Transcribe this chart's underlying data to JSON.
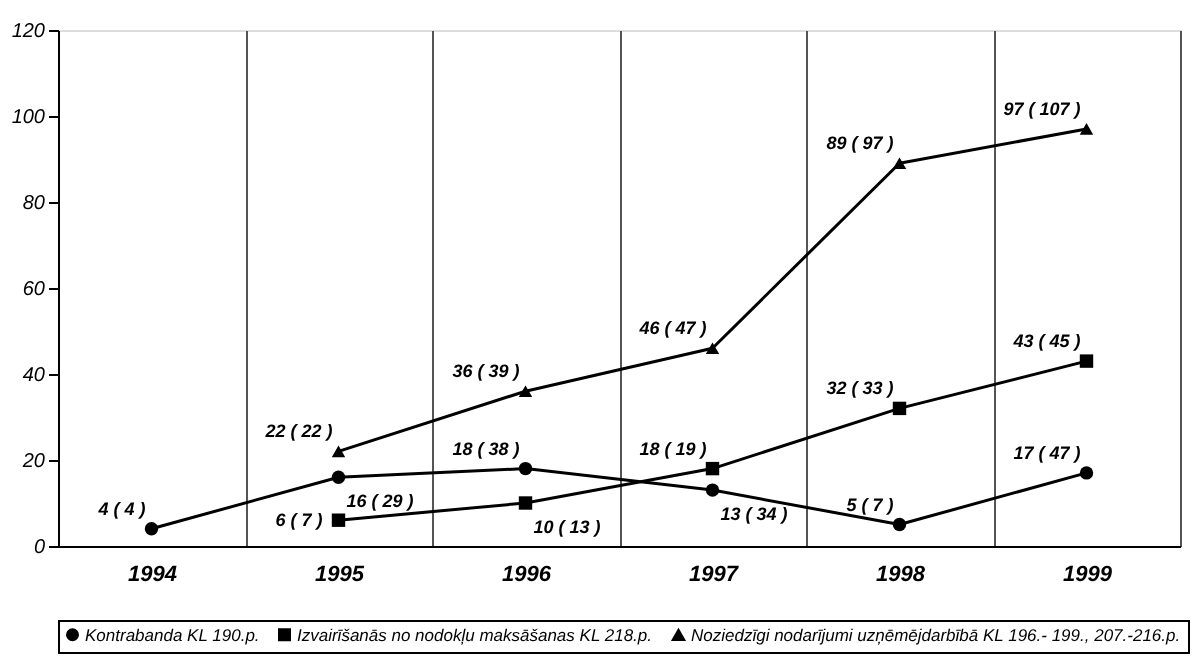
{
  "chart_data": {
    "type": "line",
    "categories": [
      "1994",
      "1995",
      "1996",
      "1997",
      "1998",
      "1999"
    ],
    "series": [
      {
        "name": "Kontrabanda KL 190.p.",
        "color": "#000000",
        "marker": "circle",
        "values": [
          4,
          16,
          18,
          13,
          5,
          17
        ],
        "value_labels": [
          "4 ( 4 )",
          "16 ( 29 )",
          "18 ( 38 )",
          "13 ( 34 )",
          "5 ( 7 )",
          "17 ( 47 )"
        ]
      },
      {
        "name": "Izvairīšanās no nodokļu maksāšanas KL 218.p.",
        "color": "#000000",
        "marker": "square",
        "values": [
          null,
          6,
          10,
          18,
          32,
          43
        ],
        "value_labels": [
          null,
          "6 ( 7 )",
          "10 ( 13 )",
          "18 ( 19 )",
          "32 ( 33 )",
          "43 ( 45 )"
        ]
      },
      {
        "name": "Noziedzīgi nodarījumi uzņēmējdarbībā KL 196.- 199., 207.-216.p.",
        "color": "#000000",
        "marker": "triangle",
        "values": [
          null,
          22,
          36,
          46,
          89,
          97
        ],
        "value_labels": [
          null,
          "22 ( 22 )",
          "36 ( 39 )",
          "46 ( 47 )",
          "89 ( 97 )",
          "97 ( 107 )"
        ]
      }
    ],
    "ylim": [
      0,
      120
    ],
    "yticks": [
      0,
      20,
      40,
      60,
      80,
      100,
      120
    ],
    "grid": "x",
    "legend": "bottom",
    "line_style": "solid"
  }
}
